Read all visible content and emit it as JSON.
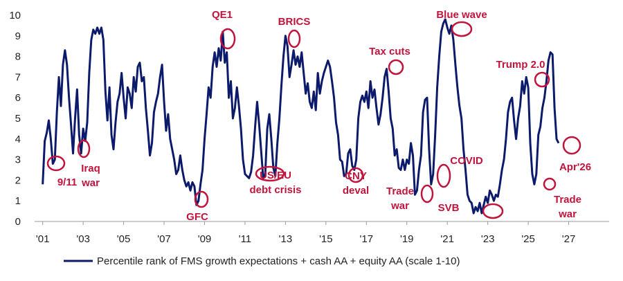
{
  "chart_data": {
    "type": "line",
    "xlim": [
      2000.6,
      2029
    ],
    "ylim": [
      0,
      10
    ],
    "xticks": [
      {
        "value": 2001,
        "label": "'01"
      },
      {
        "value": 2003,
        "label": "'03"
      },
      {
        "value": 2005,
        "label": "'05"
      },
      {
        "value": 2007,
        "label": "'07"
      },
      {
        "value": 2009,
        "label": "'09"
      },
      {
        "value": 2011,
        "label": "'11"
      },
      {
        "value": 2013,
        "label": "'13"
      },
      {
        "value": 2015,
        "label": "'15"
      },
      {
        "value": 2017,
        "label": "'17"
      },
      {
        "value": 2019,
        "label": "'19"
      },
      {
        "value": 2021,
        "label": "'21"
      },
      {
        "value": 2023,
        "label": "'23"
      },
      {
        "value": 2025,
        "label": "'25"
      },
      {
        "value": 2027,
        "label": "'27"
      }
    ],
    "yticks": [
      0,
      1,
      2,
      3,
      4,
      5,
      6,
      7,
      8,
      9,
      10
    ],
    "grid": false,
    "legend": "bottom",
    "x": [
      2001.0,
      2001.1,
      2001.2,
      2001.3,
      2001.4,
      2001.5,
      2001.6,
      2001.7,
      2001.8,
      2001.9,
      2002.0,
      2002.1,
      2002.2,
      2002.3,
      2002.4,
      2002.5,
      2002.6,
      2002.7,
      2002.8,
      2002.9,
      2003.0,
      2003.1,
      2003.2,
      2003.3,
      2003.4,
      2003.5,
      2003.6,
      2003.7,
      2003.8,
      2003.9,
      2004.0,
      2004.1,
      2004.2,
      2004.3,
      2004.4,
      2004.5,
      2004.6,
      2004.7,
      2004.8,
      2004.9,
      2005.0,
      2005.1,
      2005.2,
      2005.3,
      2005.4,
      2005.5,
      2005.6,
      2005.7,
      2005.8,
      2005.9,
      2006.0,
      2006.1,
      2006.2,
      2006.3,
      2006.4,
      2006.5,
      2006.6,
      2006.7,
      2006.8,
      2006.9,
      2007.0,
      2007.1,
      2007.2,
      2007.3,
      2007.4,
      2007.5,
      2007.6,
      2007.7,
      2007.8,
      2007.9,
      2008.0,
      2008.1,
      2008.2,
      2008.3,
      2008.4,
      2008.5,
      2008.6,
      2008.7,
      2008.8,
      2008.9,
      2009.0,
      2009.1,
      2009.2,
      2009.3,
      2009.4,
      2009.5,
      2009.6,
      2009.7,
      2009.8,
      2009.9,
      2010.0,
      2010.1,
      2010.2,
      2010.3,
      2010.4,
      2010.5,
      2010.6,
      2010.7,
      2010.8,
      2010.9,
      2011.0,
      2011.1,
      2011.2,
      2011.3,
      2011.4,
      2011.5,
      2011.6,
      2011.7,
      2011.8,
      2011.9,
      2012.0,
      2012.1,
      2012.2,
      2012.3,
      2012.4,
      2012.5,
      2012.6,
      2012.7,
      2012.8,
      2012.9,
      2013.0,
      2013.1,
      2013.2,
      2013.3,
      2013.4,
      2013.5,
      2013.6,
      2013.7,
      2013.8,
      2013.9,
      2014.0,
      2014.1,
      2014.2,
      2014.3,
      2014.4,
      2014.5,
      2014.6,
      2014.7,
      2014.8,
      2014.9,
      2015.0,
      2015.1,
      2015.2,
      2015.3,
      2015.4,
      2015.5,
      2015.6,
      2015.7,
      2015.8,
      2015.9,
      2016.0,
      2016.1,
      2016.2,
      2016.3,
      2016.4,
      2016.5,
      2016.6,
      2016.7,
      2016.8,
      2016.9,
      2017.0,
      2017.1,
      2017.2,
      2017.3,
      2017.4,
      2017.5,
      2017.6,
      2017.7,
      2017.8,
      2017.9,
      2018.0,
      2018.1,
      2018.2,
      2018.3,
      2018.4,
      2018.5,
      2018.6,
      2018.7,
      2018.8,
      2018.9,
      2019.0,
      2019.1,
      2019.2,
      2019.3,
      2019.4,
      2019.5,
      2019.6,
      2019.7,
      2019.8,
      2019.9,
      2020.0,
      2020.1,
      2020.2,
      2020.3,
      2020.4,
      2020.5,
      2020.6,
      2020.7,
      2020.8,
      2020.9,
      2021.0,
      2021.1,
      2021.2,
      2021.3,
      2021.4,
      2021.5,
      2021.6,
      2021.7,
      2021.8,
      2021.9,
      2022.0,
      2022.1,
      2022.2,
      2022.3,
      2022.4,
      2022.5,
      2022.6,
      2022.7,
      2022.8,
      2022.9,
      2023.0,
      2023.1,
      2023.2,
      2023.3,
      2023.4,
      2023.5,
      2023.6,
      2023.7,
      2023.8,
      2023.9,
      2024.0,
      2024.1,
      2024.2,
      2024.3,
      2024.4,
      2024.5,
      2024.6,
      2024.7,
      2024.8,
      2024.9,
      2025.0,
      2025.1,
      2025.2,
      2025.3,
      2025.4,
      2025.5,
      2025.6,
      2025.7,
      2025.8,
      2025.9,
      2026.0,
      2026.1,
      2026.2,
      2026.3,
      2026.4,
      2026.5
    ],
    "series": [
      {
        "name": "Percentile rank of FMS growth expectations + cash AA + equity AA (scale 1-10)",
        "color": "#0c1a6b",
        "values": [
          1.8,
          3.9,
          4.3,
          4.9,
          4.0,
          2.8,
          3.0,
          5.3,
          7.0,
          5.6,
          7.6,
          8.3,
          7.6,
          6.0,
          4.7,
          3.3,
          5.0,
          6.4,
          4.2,
          3.3,
          4.5,
          3.9,
          4.8,
          7.2,
          8.8,
          9.3,
          9.1,
          9.4,
          9.1,
          9.4,
          8.8,
          6.3,
          4.9,
          6.5,
          4.2,
          3.5,
          4.8,
          5.8,
          6.2,
          7.2,
          6.0,
          5.0,
          6.5,
          6.2,
          5.5,
          7.0,
          6.3,
          7.5,
          7.7,
          6.8,
          7.0,
          5.5,
          4.4,
          3.2,
          3.8,
          5.3,
          5.8,
          6.2,
          7.0,
          7.6,
          5.8,
          4.4,
          5.2,
          4.0,
          3.5,
          3.0,
          2.3,
          2.5,
          3.2,
          2.5,
          2.0,
          1.7,
          1.9,
          1.5,
          1.9,
          1.7,
          0.8,
          1.0,
          1.8,
          2.5,
          4.0,
          5.2,
          6.5,
          6.0,
          7.5,
          8.2,
          7.5,
          8.4,
          7.8,
          9.2,
          7.7,
          8.2,
          6.0,
          6.8,
          5.0,
          5.5,
          6.5,
          5.6,
          4.5,
          3.0,
          2.3,
          2.2,
          2.1,
          2.4,
          3.2,
          4.6,
          5.8,
          4.7,
          3.4,
          2.1,
          2.3,
          4.5,
          5.2,
          4.0,
          2.6,
          2.2,
          3.8,
          5.0,
          6.6,
          8.0,
          9.0,
          8.5,
          7.0,
          7.6,
          8.3,
          7.6,
          8.0,
          7.5,
          8.2,
          7.2,
          6.2,
          6.7,
          5.8,
          5.5,
          6.3,
          5.4,
          7.2,
          6.2,
          6.8,
          7.2,
          7.5,
          7.8,
          7.5,
          6.8,
          6.0,
          4.8,
          4.2,
          3.0,
          2.9,
          2.2,
          2.3,
          3.3,
          3.5,
          2.7,
          2.5,
          3.0,
          5.0,
          5.8,
          6.1,
          5.8,
          6.3,
          5.5,
          6.8,
          6.0,
          6.4,
          5.5,
          4.7,
          5.2,
          6.0,
          7.0,
          7.4,
          6.3,
          5.0,
          4.5,
          3.2,
          3.5,
          2.6,
          2.5,
          3.0,
          2.5,
          3.0,
          2.8,
          3.8,
          3.2,
          1.3,
          1.5,
          2.5,
          3.2,
          5.3,
          5.9,
          6.0,
          3.5,
          1.8,
          2.3,
          4.2,
          6.5,
          8.0,
          9.2,
          9.6,
          9.8,
          9.4,
          9.1,
          9.5,
          8.8,
          7.6,
          6.5,
          5.6,
          5.0,
          3.5,
          2.5,
          1.3,
          1.0,
          0.9,
          0.4,
          0.7,
          0.5,
          0.9,
          0.4,
          0.8,
          1.2,
          0.9,
          1.5,
          1.3,
          1.0,
          1.3,
          1.2,
          1.8,
          2.5,
          3.0,
          4.0,
          5.3,
          5.8,
          6.0,
          4.9,
          4.0,
          5.0,
          5.6,
          6.8,
          6.2,
          7.0,
          6.5,
          3.8,
          2.3,
          1.8,
          2.3,
          4.2,
          4.6,
          5.5,
          6.0,
          6.8,
          7.8,
          8.2,
          8.1,
          5.5,
          4.0,
          3.8
        ]
      }
    ],
    "annotations": [
      [
        "9/11"
      ],
      [
        "Iraq",
        "war"
      ],
      [
        "GFC"
      ],
      [
        "QE1"
      ],
      [
        "US/EU",
        "debt crisis"
      ],
      [
        "BRICS"
      ],
      [
        "CNY",
        "deval"
      ],
      [
        "Tax cuts"
      ],
      [
        "Trade",
        "war"
      ],
      [
        "COVID"
      ],
      [
        "SVB"
      ],
      [
        "Blue wave"
      ],
      [
        "Trump 2.0"
      ],
      [
        "Trade",
        "war"
      ],
      [
        "Apr'26"
      ]
    ]
  }
}
